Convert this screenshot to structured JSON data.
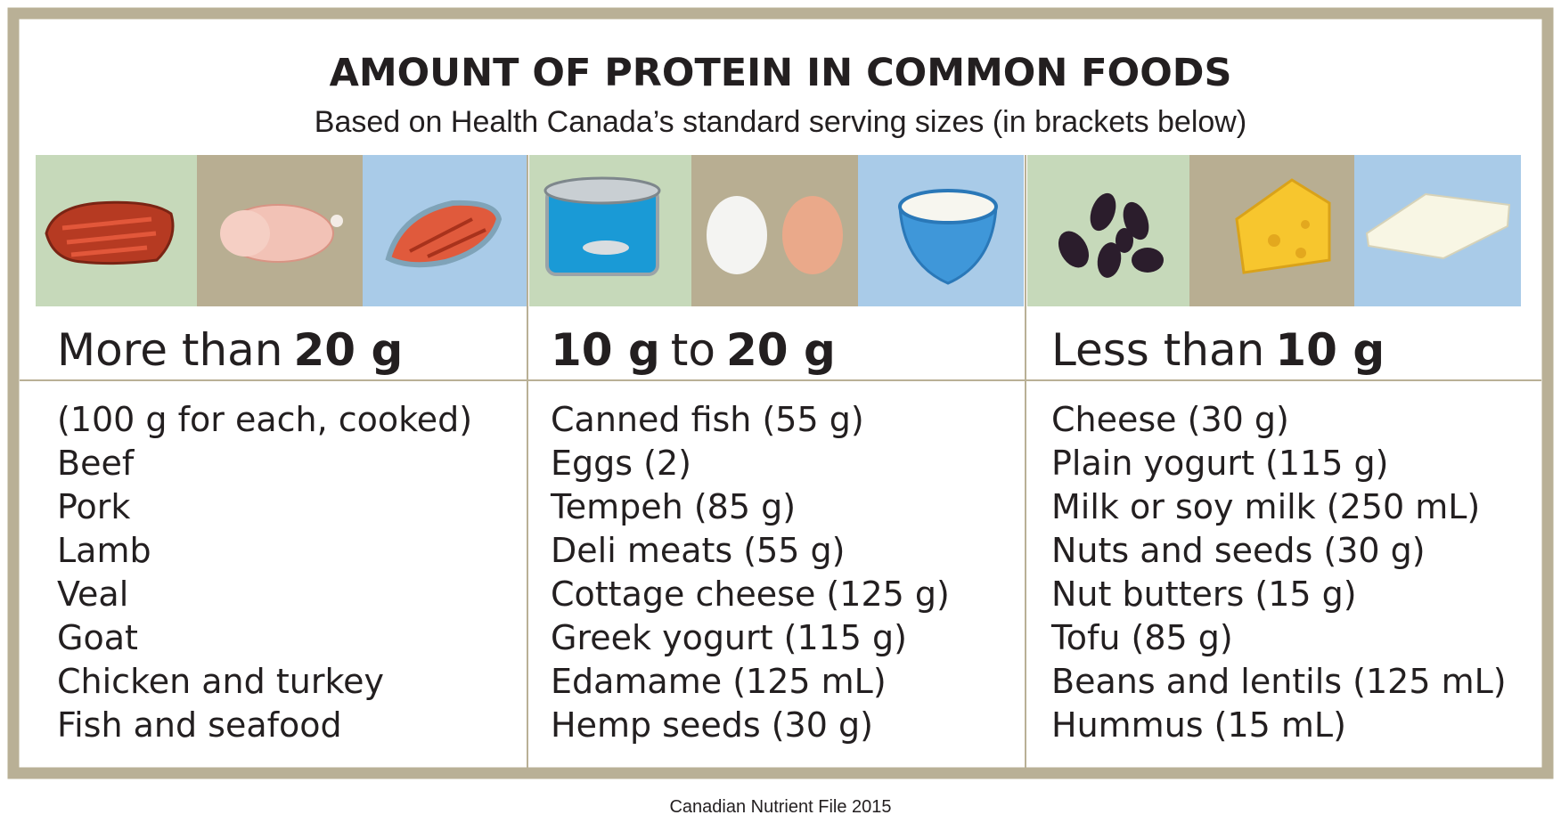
{
  "header": {
    "title": "AMOUNT OF PROTEIN IN COMMON FOODS",
    "subtitle": "Based on Health Canada’s standard serving sizes (in brackets below)"
  },
  "columns": [
    {
      "heading": [
        {
          "text": "More than",
          "bold": false
        },
        {
          "text": "20 g",
          "bold": true
        }
      ],
      "items": [
        "(100 g for each, cooked)",
        "Beef",
        "Pork",
        "Lamb",
        "Veal",
        "Goat",
        "Chicken and turkey",
        "Fish and seafood"
      ]
    },
    {
      "heading": [
        {
          "text": "10 g",
          "bold": true
        },
        {
          "text": "to",
          "bold": false
        },
        {
          "text": "20 g",
          "bold": true
        }
      ],
      "items": [
        "Canned fish (55 g)",
        "Eggs (2)",
        "Tempeh (85 g)",
        "Deli meats (55 g)",
        "Cottage cheese (125 g)",
        "Greek yogurt (115 g)",
        "Edamame (125 mL)",
        "Hemp seeds (30 g)"
      ]
    },
    {
      "heading": [
        {
          "text": "Less than",
          "bold": false
        },
        {
          "text": "10 g",
          "bold": true
        }
      ],
      "items": [
        "Cheese (30 g)",
        "Plain yogurt (115 g)",
        "Milk or soy milk (250 mL)",
        "Nuts and seeds (30 g)",
        "Nut butters (15 g)",
        "Tofu (85 g)",
        "Beans and lentils (125 mL)",
        "Hummus (15 mL)"
      ]
    }
  ],
  "footer": {
    "source": "Canadian Nutrient File 2015"
  }
}
